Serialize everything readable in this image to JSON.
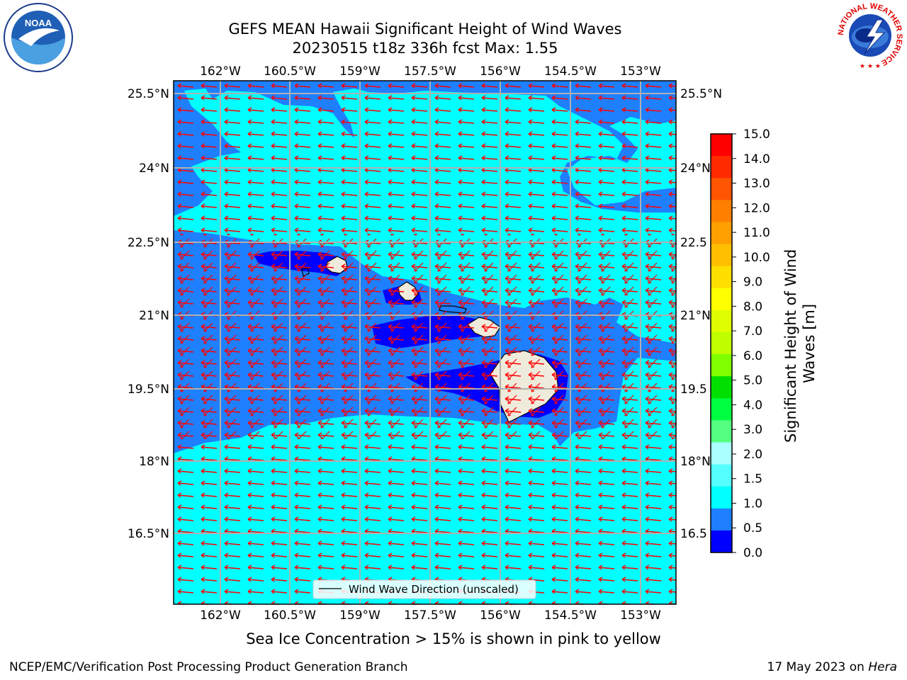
{
  "header": {
    "title_line1": "GEFS MEAN Hawaii Significant Height of Wind Waves",
    "title_line2": "20230515 t18z 336h fcst   Max: 1.55"
  },
  "logos": {
    "left": {
      "icon": "noaa-logo",
      "text": "NOAA"
    },
    "right": {
      "icon": "national-weather-service-logo",
      "text": "NATIONAL WEATHER SERVICE"
    }
  },
  "map": {
    "lon_labels": [
      "162°W",
      "160.5°W",
      "159°W",
      "157.5°W",
      "156°W",
      "154.5°W",
      "153°W"
    ],
    "lat_labels": [
      "25.5°N",
      "24°N",
      "22.5°N",
      "21°N",
      "19.5°N",
      "18°N",
      "16.5°N"
    ],
    "right_lat_labels": [
      "25.5°N",
      "24°N",
      "22.5",
      "21°N",
      "19.5",
      "18°N",
      "16.5"
    ],
    "legend_label": "Wind Wave Direction (unscaled)",
    "colors": {
      "band_0_0_5": "#0000ff",
      "band_0_5_1_0": "#1e7fff",
      "band_1_0_1_5": "#00ffff",
      "land": "#efebdc",
      "arrows": "#ff0000"
    }
  },
  "colorbar": {
    "label_line1": "Significant Height of Wind",
    "label_line2": "Waves [m]",
    "ticks": [
      "15.0",
      "14.0",
      "13.0",
      "12.0",
      "11.0",
      "10.0",
      "9.0",
      "8.0",
      "7.0",
      "6.0",
      "5.0",
      "4.0",
      "3.0",
      "2.0",
      "1.5",
      "1.0",
      "0.5",
      "0.0"
    ],
    "colors_top_to_bottom": [
      "#ff0000",
      "#ff2a00",
      "#ff5500",
      "#ff7f00",
      "#ff9f00",
      "#ffbf00",
      "#ffdf00",
      "#ffff00",
      "#dfff00",
      "#bfff00",
      "#7fff00",
      "#00df00",
      "#00ff40",
      "#55ff80",
      "#aaffff",
      "#55ffff",
      "#00ffff",
      "#1e7fff",
      "#0000ff"
    ]
  },
  "notes": {
    "sea_ice": "Sea Ice Concentration > 15% is shown in pink to yellow"
  },
  "footer": {
    "left": "NCEP/EMC/Verification Post Processing Product Generation Branch",
    "right_date": "17 May 2023 on ",
    "right_host": "Hera"
  }
}
